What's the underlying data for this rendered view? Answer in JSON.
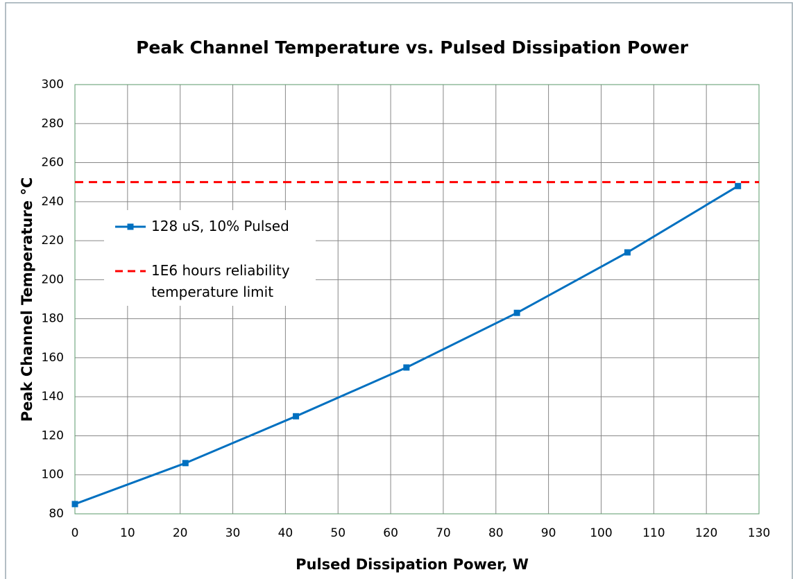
{
  "chart_data": {
    "type": "line",
    "title": "Peak Channel Temperature vs. Pulsed Dissipation Power",
    "x_label": "Pulsed Dissipation Power, W",
    "y_label": "Peak Channel Temperature °C",
    "series": [
      {
        "name": "128 uS, 10% Pulsed",
        "color": "#0070c0",
        "marker": "square",
        "dashed": false,
        "x": [
          0,
          21,
          42,
          63,
          84,
          105,
          126
        ],
        "values": [
          85,
          106,
          130,
          155,
          183,
          214,
          248
        ]
      },
      {
        "name": "1E6 hours reliability temperature limit",
        "color": "#ff0000",
        "marker": "none",
        "dashed": true,
        "x": [
          0,
          130
        ],
        "values": [
          250,
          250
        ]
      }
    ],
    "xlim": [
      0,
      130
    ],
    "xticks": [
      0,
      10,
      20,
      30,
      40,
      50,
      60,
      70,
      80,
      90,
      100,
      110,
      120,
      130
    ],
    "ylim": [
      80,
      300
    ],
    "yticks": [
      80,
      100,
      120,
      140,
      160,
      180,
      200,
      220,
      240,
      260,
      280,
      300
    ],
    "grid": true,
    "legend": "upper left"
  }
}
